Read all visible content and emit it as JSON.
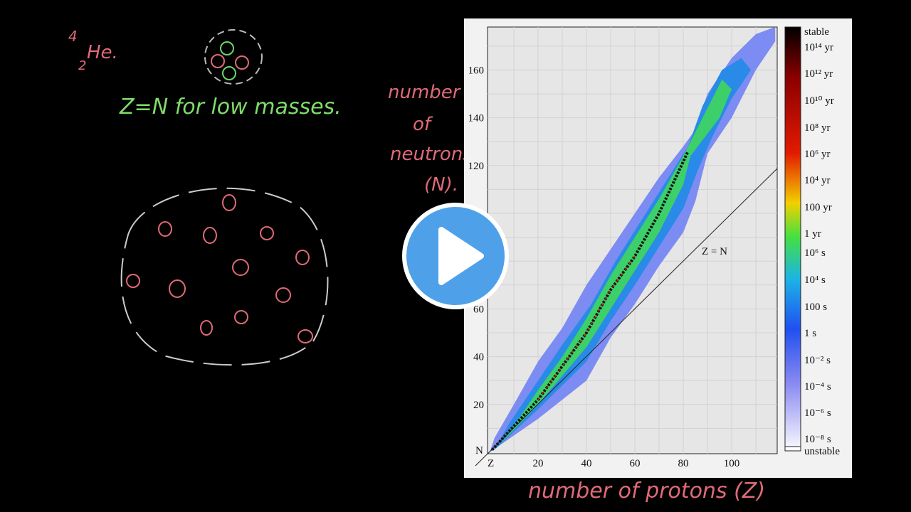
{
  "annotations": {
    "helium": {
      "mass": "4",
      "atomic": "2",
      "symbol": "He."
    },
    "z_equals_n_note": "Z=N for low masses.",
    "y_axis_label": [
      "number",
      "of",
      "neutrons",
      "(N)."
    ],
    "x_axis_label": "number of protons (Z)"
  },
  "chart": {
    "y_ticks": [
      "20",
      "40",
      "60",
      "120",
      "140",
      "160"
    ],
    "x_ticks": [
      "20",
      "40",
      "60",
      "80",
      "100"
    ],
    "y_origin": "N",
    "x_origin": "Z",
    "line_label": "Z = N",
    "colorbar": [
      "stable",
      "10¹⁴ yr",
      "10¹² yr",
      "10¹⁰ yr",
      "10⁸ yr",
      "10⁶ yr",
      "10⁴ yr",
      "100 yr",
      "1 yr",
      "10⁶ s",
      "10⁴ s",
      "100 s",
      "1 s",
      "10⁻² s",
      "10⁻⁴ s",
      "10⁻⁶ s",
      "10⁻⁸ s",
      "unstable"
    ]
  }
}
